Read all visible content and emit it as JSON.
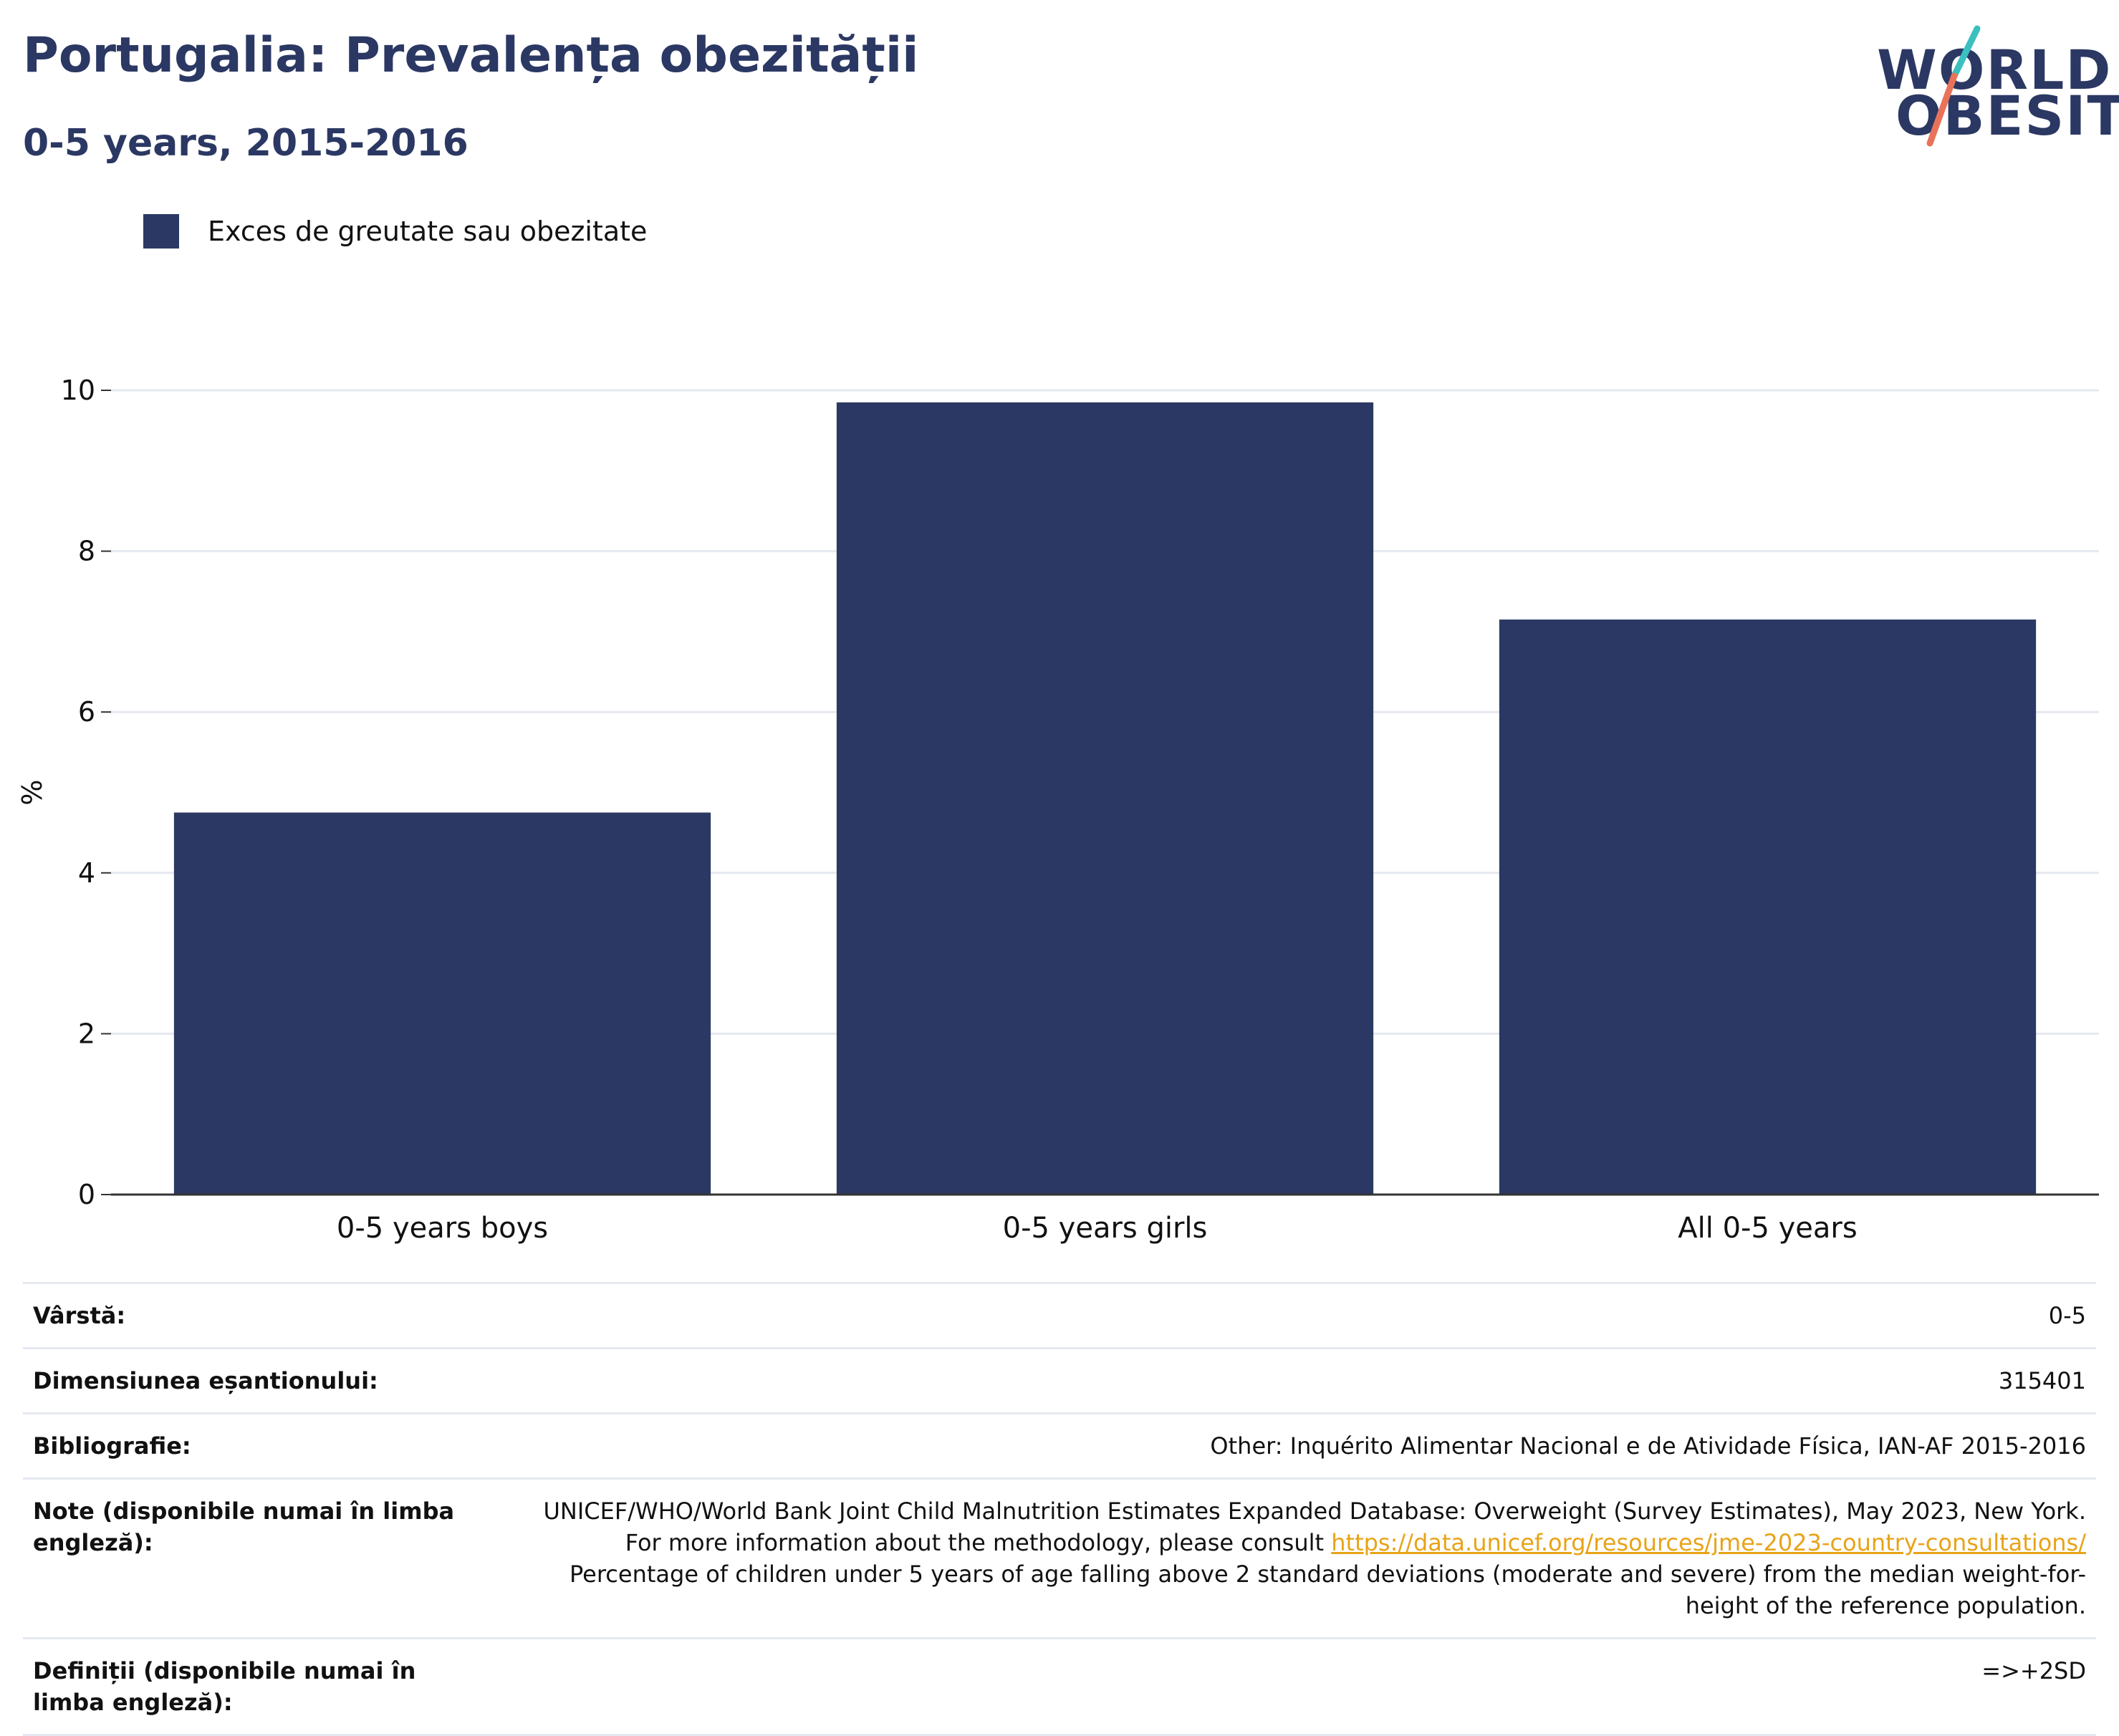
{
  "header": {
    "title": "Portugalia: Prevalența obezității",
    "subtitle": "0-5 years, 2015-2016"
  },
  "logo": {
    "line1": "WORLD",
    "line2": "OBESITY",
    "colors": {
      "text": "#2b3863",
      "accent_teal": "#3bbfbf",
      "accent_coral": "#e8735a"
    }
  },
  "chart_data": {
    "type": "bar",
    "categories": [
      "0-5 years boys",
      "0-5 years girls",
      "All 0-5 years"
    ],
    "series": [
      {
        "name": "Exces de greutate sau obezitate",
        "values": [
          4.75,
          9.85,
          7.15
        ],
        "color": "#2b3863"
      }
    ],
    "title": "Portugalia: Prevalența obezității",
    "subtitle": "0-5 years, 2015-2016",
    "xlabel": "",
    "ylabel": "%",
    "ylim": [
      0,
      10
    ],
    "yticks": [
      0,
      2,
      4,
      6,
      8,
      10
    ],
    "grid": true,
    "legend": "top-left"
  },
  "info": {
    "rows": [
      {
        "label": "Vârstă:",
        "value": "0-5"
      },
      {
        "label": "Dimensiunea eșantionului:",
        "value": "315401"
      },
      {
        "label": "Bibliografie:",
        "value": "Other: Inquérito Alimentar Nacional e de Atividade Física, IAN-AF 2015-2016"
      }
    ],
    "notes": {
      "label": "Note (disponibile numai în limba engleză):",
      "text_before": "UNICEF/WHO/World Bank Joint Child Malnutrition Estimates Expanded Database: Overweight (Survey Estimates), May 2023, New York. For more information about the methodology, please consult ",
      "link": "https://data.unicef.org/resources/jme-2023-country-consultations/",
      "text_after": " Percentage of children under 5 years of age falling above 2 standard deviations (moderate and severe) from the median weight-for-height of the reference population."
    },
    "definitions": {
      "label": "Definiții (disponibile numai în limba engleză):",
      "value": "=>+2SD"
    }
  }
}
